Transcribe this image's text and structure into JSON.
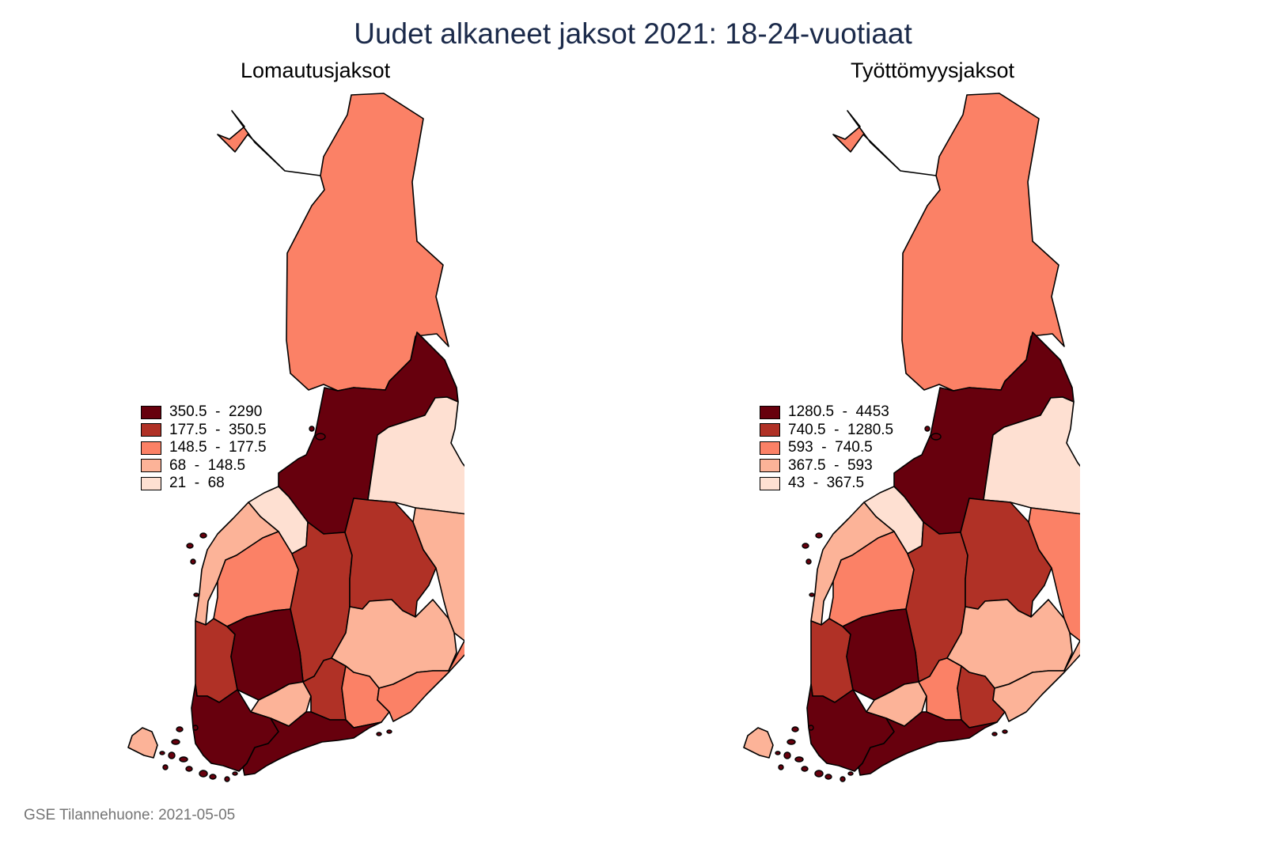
{
  "title": "Uudet alkaneet jaksot 2021: 18-24-vuotiaat",
  "caption": "GSE Tilannehuone: 2021-05-05",
  "panels": [
    {
      "title": "Lomautusjaksot",
      "legend": [
        {
          "label": "350.5  -  2290",
          "color": "#67000d"
        },
        {
          "label": "177.5  -  350.5",
          "color": "#b03126"
        },
        {
          "label": "148.5  -  177.5",
          "color": "#fb8166"
        },
        {
          "label": "68  -  148.5",
          "color": "#fcb398"
        },
        {
          "label": "21  -  68",
          "color": "#fee0d2"
        }
      ],
      "regions": {
        "lappi": 2,
        "pohjois_pohjanmaa": 0,
        "kainuu": 4,
        "keski_pohjanmaa": 4,
        "pohjanmaa": 3,
        "etela_pohjanmaa": 2,
        "keski_suomi": 1,
        "pohjois_savo": 1,
        "pohjois_karjala": 3,
        "satakunta": 1,
        "pirkanmaa": 0,
        "kanta_hame": 3,
        "paijat_hame": 1,
        "etela_savo": 3,
        "kymenlaakso": 2,
        "etela_karjala": 2,
        "varsinais_suomi": 0,
        "uusimaa": 0,
        "ahvenanmaa": 3
      }
    },
    {
      "title": "Työttömyysjaksot",
      "legend": [
        {
          "label": "1280.5  -  4453",
          "color": "#67000d"
        },
        {
          "label": "740.5  -  1280.5",
          "color": "#b03126"
        },
        {
          "label": "593  -  740.5",
          "color": "#fb8166"
        },
        {
          "label": "367.5  -  593",
          "color": "#fcb398"
        },
        {
          "label": "43  -  367.5",
          "color": "#fee0d2"
        }
      ],
      "regions": {
        "lappi": 2,
        "pohjois_pohjanmaa": 0,
        "kainuu": 4,
        "keski_pohjanmaa": 4,
        "pohjanmaa": 3,
        "etela_pohjanmaa": 2,
        "keski_suomi": 1,
        "pohjois_savo": 1,
        "pohjois_karjala": 2,
        "satakunta": 1,
        "pirkanmaa": 0,
        "kanta_hame": 3,
        "paijat_hame": 2,
        "etela_savo": 3,
        "kymenlaakso": 1,
        "etela_karjala": 3,
        "varsinais_suomi": 0,
        "uusimaa": 0,
        "ahvenanmaa": 3
      }
    }
  ]
}
